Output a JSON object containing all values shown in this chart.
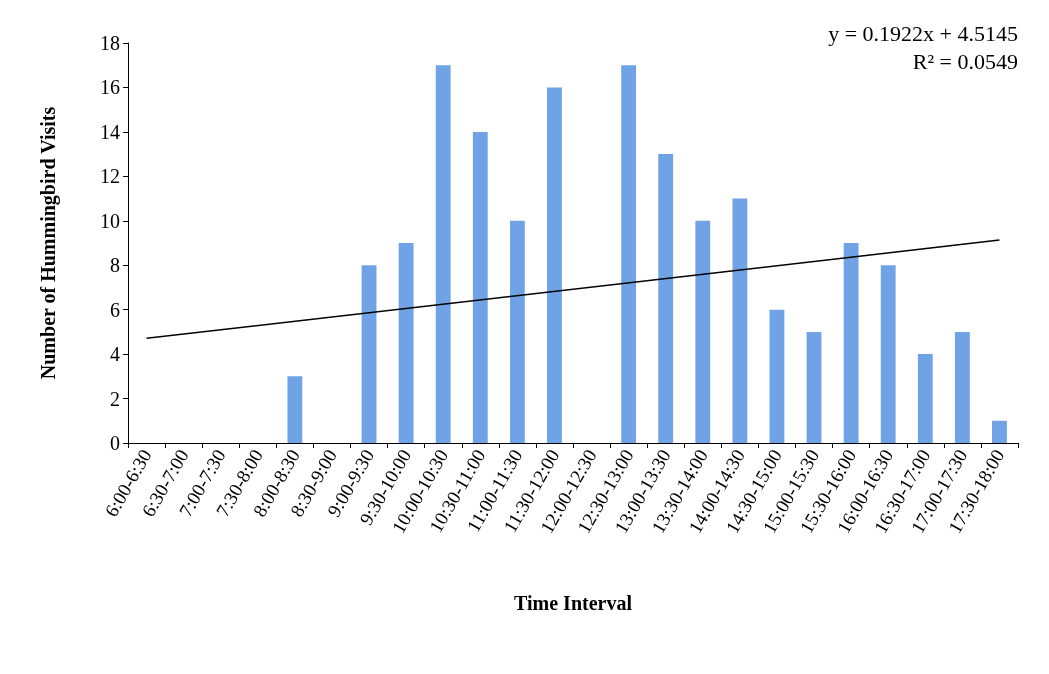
{
  "chart_data": {
    "type": "bar",
    "xlabel": "Time Interval",
    "ylabel": "Number of Hummingbird Visits",
    "categories": [
      "6:00-6:30",
      "6:30-7:00",
      "7:00-7:30",
      "7:30-8:00",
      "8:00-8:30",
      "8:30-9:00",
      "9:00-9:30",
      "9:30-10:00",
      "10:00-10:30",
      "10:30-11:00",
      "11:00-11:30",
      "11:30-12:00",
      "12:00-12:30",
      "12:30-13:00",
      "13:00-13:30",
      "13:30-14:00",
      "14:00-14:30",
      "14:30-15:00",
      "15:00-15:30",
      "15:30-16:00",
      "16:00-16:30",
      "16:30-17:00",
      "17:00-17:30",
      "17:30-18:00"
    ],
    "series": [
      {
        "color": "#6fa3e6",
        "values": [
          0,
          0,
          0,
          0,
          3,
          0,
          8,
          9,
          17,
          14,
          10,
          16,
          0,
          17,
          13,
          10,
          11,
          6,
          5,
          9,
          8,
          4,
          5,
          1
        ]
      },
      {
        "type": "line",
        "color": "#000000",
        "x": [
          "6:00-6:30",
          "17:30-18:00"
        ],
        "values": [
          4.71,
          9.13
        ]
      }
    ],
    "ylim": [
      0,
      18
    ],
    "yticks": [
      0,
      2,
      4,
      6,
      8,
      10,
      12,
      14,
      16,
      18
    ],
    "grid": false,
    "marker": "none",
    "line_style": "solid",
    "annotations": [
      "y = 0.1922x + 4.5145",
      "R² = 0.0549"
    ]
  }
}
